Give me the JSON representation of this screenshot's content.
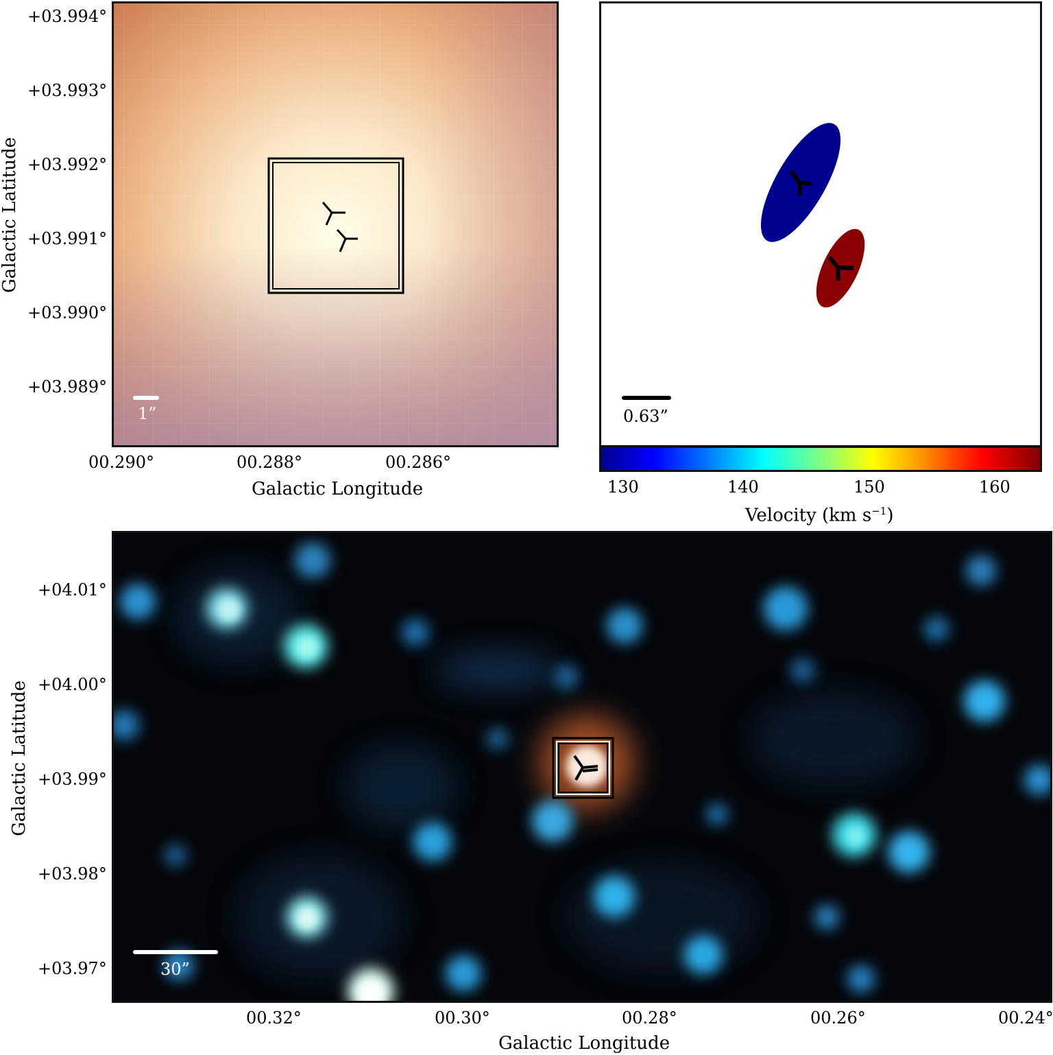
{
  "top_left": {
    "y_ticks": [
      "+03.994°",
      "+03.993°",
      "+03.992°",
      "+03.991°",
      "+03.990°",
      "+03.989°"
    ],
    "x_ticks": [
      "00.290°",
      "00.288°",
      "00.286°"
    ],
    "xlabel": "Galactic Longitude",
    "ylabel": "Galactic Latitude",
    "scale_label": "1”"
  },
  "top_right": {
    "scale_label": "0.63”",
    "colorbar_ticks": [
      "130",
      "140",
      "150",
      "160"
    ],
    "colorbar_label": "Velocity (km s",
    "colorbar_label_sup": "−1",
    "colorbar_label_close": ")",
    "colors": {
      "blue_component": "#00008f",
      "red_component": "#8b0000"
    }
  },
  "bottom": {
    "y_ticks": [
      "+04.01°",
      "+04.00°",
      "+03.99°",
      "+03.98°",
      "+03.97°"
    ],
    "x_ticks": [
      "00.32°",
      "00.30°",
      "00.28°",
      "00.26°",
      "00.24°"
    ],
    "xlabel": "Galactic Longitude",
    "ylabel": "Galactic Latitude",
    "scale_label": "30”"
  }
}
